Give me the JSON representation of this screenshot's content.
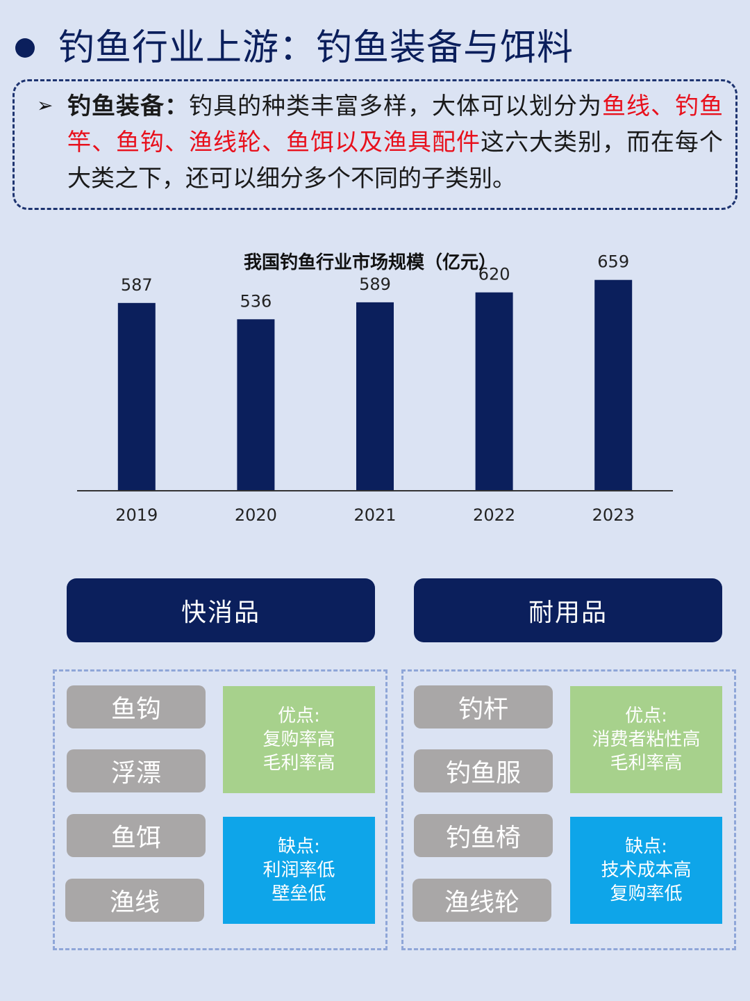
{
  "header": {
    "title": "钓鱼行业上游：钓鱼装备与饵料"
  },
  "intro": {
    "arrow": "➢",
    "bold_label": "钓鱼装备：",
    "text_before": "钓具的种类丰富多样，大体可以划分为",
    "highlight": "鱼线、钓鱼竿、鱼钩、渔线轮、鱼饵以及渔具配件",
    "text_after": "这六大类别，而在每个大类之下，还可以细分多个不同的子类别。"
  },
  "colors": {
    "navy": "#0b1f5c",
    "background": "#dbe3f3",
    "highlight_red": "#e8101c",
    "pill_gray": "#a9a7a7",
    "pros_green": "#a7d18c",
    "cons_blue": "#0ea5e9"
  },
  "chart_data": {
    "type": "bar",
    "title": "我国钓鱼行业市场规模（亿元）",
    "categories": [
      "2019",
      "2020",
      "2021",
      "2022",
      "2023"
    ],
    "values": [
      587,
      536,
      589,
      620,
      659
    ],
    "xlabel": "",
    "ylabel": "",
    "ylim": [
      0,
      730
    ],
    "grid": false,
    "bar_color": "#0b1f5c"
  },
  "categories": {
    "fmcg": {
      "label": "快消品",
      "items": [
        "鱼钩",
        "浮漂",
        "鱼饵",
        "渔线"
      ],
      "pros_title": "优点:",
      "pros": [
        "复购率高",
        "毛利率高"
      ],
      "cons_title": "缺点:",
      "cons": [
        "利润率低",
        "壁垒低"
      ]
    },
    "durable": {
      "label": "耐用品",
      "items": [
        "钓杆",
        "钓鱼服",
        "钓鱼椅",
        "渔线轮"
      ],
      "pros_title": "优点:",
      "pros": [
        "消费者粘性高",
        "毛利率高"
      ],
      "cons_title": "缺点:",
      "cons": [
        "技术成本高",
        "复购率低"
      ]
    }
  }
}
